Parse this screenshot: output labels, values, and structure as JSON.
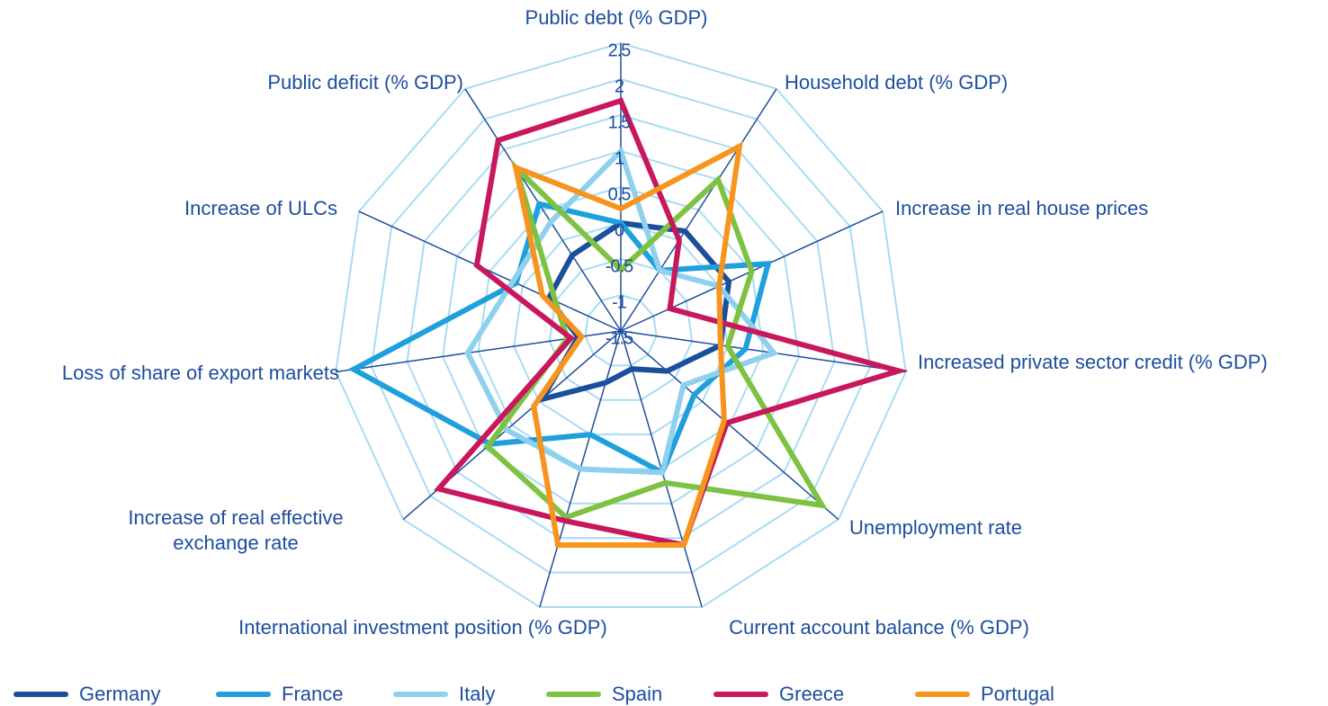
{
  "chart_data": {
    "type": "radar",
    "categories": [
      "Public debt (% GDP)",
      "Household debt (% GDP)",
      "Increase in real house prices",
      "Increased private sector credit (% GDP)",
      "Unemployment rate",
      "Current account balance (% GDP)",
      "International investment position (% GDP)",
      "Increase of real effective exchange rate",
      "Loss of share of export markets",
      "Increase of ULCs",
      "Public deficit (% GDP)"
    ],
    "ylim": [
      -1.5,
      2.5
    ],
    "yticks": [
      -1.5,
      -1.0,
      -0.5,
      0.0,
      0.5,
      1.0,
      1.5,
      2.0,
      2.5
    ],
    "grid": true,
    "legend": "bottom",
    "series": [
      {
        "name": "Germany",
        "color": "#1a4f9c",
        "values": [
          0.0,
          0.15,
          0.15,
          -0.1,
          -0.65,
          -0.95,
          -0.75,
          -0.05,
          -0.9,
          -0.4,
          -0.25
        ]
      },
      {
        "name": "France",
        "color": "#1ea0dc",
        "values": [
          0.0,
          -0.5,
          0.75,
          0.25,
          -0.15,
          0.55,
          0.0,
          0.9,
          2.25,
          0.1,
          0.6
        ]
      },
      {
        "name": "Italy",
        "color": "#8fd0ef",
        "values": [
          1.0,
          -0.5,
          0.0,
          0.65,
          -0.35,
          0.55,
          0.5,
          0.6,
          0.65,
          0.15,
          0.3
        ]
      },
      {
        "name": "Spain",
        "color": "#7dc242",
        "values": [
          -0.65,
          1.0,
          0.5,
          0.0,
          2.2,
          0.7,
          1.2,
          0.95,
          -0.75,
          -0.5,
          1.2
        ]
      },
      {
        "name": "Greece",
        "color": "#c8175d",
        "values": [
          1.7,
          0.0,
          -0.75,
          2.4,
          0.45,
          1.6,
          1.25,
          1.85,
          -0.8,
          0.7,
          1.65
        ]
      },
      {
        "name": "Portugal",
        "color": "#f7941d",
        "values": [
          0.2,
          1.55,
          0.0,
          -0.1,
          0.4,
          1.6,
          1.6,
          0.1,
          -0.95,
          -0.3,
          1.2
        ]
      }
    ]
  }
}
